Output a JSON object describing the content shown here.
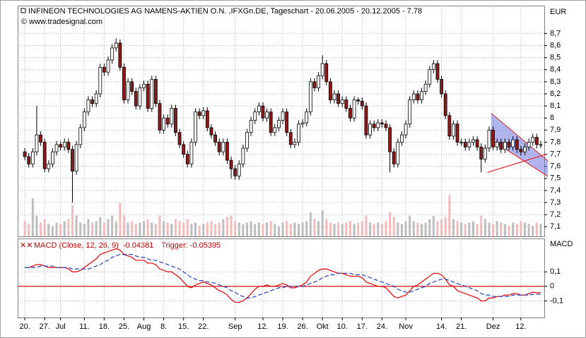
{
  "chart_data": [
    {
      "type": "candlestick",
      "title": "INFINEON TECHNOLOGIES AG NAMENS-AKTIEN O.N. ,IFXGn.DE, Tageschart - 20.06.2005 - 20.12.2005 - 7.78",
      "subtitle": "© www.tradesignal.com",
      "y_label": "EUR",
      "open": [
        7.72,
        7.68,
        7.62,
        7.72,
        7.86,
        7.8,
        7.58,
        7.62,
        7.72,
        7.78,
        7.76,
        7.8,
        7.74,
        7.56,
        7.78,
        7.92,
        8.05,
        8.15,
        8.12,
        8.2,
        8.42,
        8.38,
        8.48,
        8.58,
        8.62,
        8.42,
        8.15,
        8.3,
        8.22,
        8.1,
        8.25,
        8.28,
        8.08,
        8.32,
        8.12,
        7.9,
        8.0,
        7.95,
        8.08,
        7.88,
        7.78,
        7.7,
        7.62,
        7.8,
        8.05,
        8.02,
        8.06,
        7.92,
        7.86,
        7.8,
        7.72,
        7.8,
        7.65,
        7.58,
        7.52,
        7.62,
        7.75,
        7.88,
        7.98,
        8.05,
        8.1,
        8.0,
        8.05,
        7.88,
        7.92,
        7.98,
        8.05,
        7.88,
        7.78,
        7.8,
        7.95,
        7.96,
        8.05,
        8.3,
        8.25,
        8.35,
        8.45,
        8.3,
        8.15,
        8.2,
        8.12,
        8.15,
        8.08,
        8.0,
        8.15,
        8.14,
        8.1,
        7.86,
        7.95,
        7.92,
        7.96,
        7.95,
        7.92,
        7.72,
        7.62,
        7.8,
        7.86,
        7.95,
        8.15,
        8.2,
        8.15,
        8.22,
        8.28,
        8.4,
        8.45,
        8.32,
        8.2,
        8.02,
        7.85,
        7.95,
        7.8,
        7.8,
        7.76,
        7.8,
        7.82,
        7.76,
        7.66,
        7.75,
        7.9,
        7.76,
        7.8,
        7.74,
        7.8,
        7.76,
        7.82,
        7.74,
        7.72,
        7.76,
        7.8,
        7.84,
        7.78
      ],
      "high": [
        7.75,
        7.71,
        7.75,
        8.1,
        7.89,
        7.83,
        7.65,
        7.75,
        7.81,
        7.81,
        7.83,
        7.83,
        7.77,
        7.81,
        7.95,
        8.08,
        8.18,
        8.18,
        8.23,
        8.45,
        8.45,
        8.51,
        8.61,
        8.66,
        8.65,
        8.45,
        8.33,
        8.33,
        8.25,
        8.28,
        8.31,
        8.31,
        8.35,
        8.35,
        8.15,
        8.03,
        8.03,
        8.11,
        8.11,
        7.91,
        7.81,
        7.73,
        7.83,
        8.08,
        8.08,
        8.09,
        8.09,
        7.95,
        7.89,
        7.83,
        7.83,
        7.83,
        7.68,
        7.61,
        7.65,
        7.78,
        7.91,
        8.01,
        8.08,
        8.13,
        8.13,
        8.08,
        8.08,
        7.95,
        8.01,
        8.08,
        8.08,
        7.91,
        7.83,
        7.98,
        7.99,
        8.08,
        8.33,
        8.33,
        8.38,
        8.52,
        8.48,
        8.33,
        8.23,
        8.23,
        8.18,
        8.18,
        8.11,
        8.18,
        8.17,
        8.17,
        8.13,
        7.98,
        7.98,
        7.99,
        7.99,
        7.98,
        7.95,
        7.75,
        7.83,
        7.89,
        7.98,
        8.18,
        8.23,
        8.23,
        8.25,
        8.31,
        8.43,
        8.48,
        8.48,
        8.35,
        8.23,
        8.05,
        7.98,
        7.98,
        7.83,
        7.83,
        7.83,
        7.85,
        7.85,
        7.79,
        7.78,
        7.93,
        7.93,
        7.83,
        7.83,
        7.83,
        7.83,
        7.85,
        7.85,
        7.77,
        7.79,
        7.83,
        7.87,
        7.87,
        7.81
      ],
      "low": [
        7.65,
        7.59,
        7.59,
        7.69,
        7.77,
        7.55,
        7.55,
        7.59,
        7.69,
        7.73,
        7.73,
        7.71,
        7.3,
        7.53,
        7.75,
        7.89,
        8.02,
        8.09,
        8.09,
        8.17,
        8.35,
        8.35,
        8.45,
        8.55,
        8.39,
        8.12,
        8.12,
        8.19,
        8.07,
        8.07,
        8.22,
        8.05,
        8.05,
        8.09,
        7.87,
        7.87,
        7.92,
        7.92,
        7.85,
        7.75,
        7.67,
        7.59,
        7.59,
        7.77,
        7.99,
        7.99,
        7.89,
        7.83,
        7.77,
        7.69,
        7.69,
        7.62,
        7.5,
        7.49,
        7.49,
        7.59,
        7.72,
        7.85,
        7.95,
        8.02,
        7.97,
        7.97,
        7.85,
        7.85,
        7.89,
        7.95,
        7.85,
        7.75,
        7.75,
        7.77,
        7.92,
        7.93,
        8.02,
        8.22,
        8.22,
        8.32,
        8.27,
        8.12,
        8.12,
        8.09,
        8.09,
        8.05,
        7.97,
        7.97,
        8.11,
        8.07,
        7.83,
        7.83,
        7.89,
        7.89,
        7.92,
        7.89,
        7.55,
        7.59,
        7.59,
        7.77,
        7.83,
        7.92,
        8.12,
        8.12,
        8.12,
        8.19,
        8.25,
        8.37,
        8.29,
        8.17,
        7.99,
        7.82,
        7.82,
        7.77,
        7.77,
        7.73,
        7.73,
        7.77,
        7.73,
        7.55,
        7.63,
        7.72,
        7.73,
        7.73,
        7.71,
        7.71,
        7.73,
        7.73,
        7.71,
        7.69,
        7.69,
        7.73,
        7.77,
        7.75,
        7.75
      ],
      "close": [
        7.68,
        7.62,
        7.72,
        7.86,
        7.8,
        7.58,
        7.62,
        7.72,
        7.78,
        7.76,
        7.8,
        7.74,
        7.56,
        7.78,
        7.92,
        8.05,
        8.15,
        8.12,
        8.2,
        8.42,
        8.38,
        8.48,
        8.58,
        8.62,
        8.42,
        8.15,
        8.3,
        8.22,
        8.1,
        8.25,
        8.28,
        8.08,
        8.32,
        8.12,
        7.9,
        8.0,
        7.95,
        8.08,
        7.88,
        7.78,
        7.7,
        7.62,
        7.8,
        8.05,
        8.02,
        8.06,
        7.92,
        7.86,
        7.8,
        7.72,
        7.8,
        7.65,
        7.58,
        7.52,
        7.62,
        7.75,
        7.88,
        7.98,
        8.05,
        8.1,
        8.0,
        8.05,
        7.88,
        7.92,
        7.98,
        8.05,
        7.88,
        7.78,
        7.8,
        7.95,
        7.96,
        8.05,
        8.3,
        8.25,
        8.35,
        8.45,
        8.3,
        8.15,
        8.2,
        8.12,
        8.15,
        8.08,
        8.0,
        8.15,
        8.14,
        8.1,
        7.86,
        7.95,
        7.92,
        7.96,
        7.95,
        7.92,
        7.72,
        7.62,
        7.8,
        7.86,
        7.95,
        8.15,
        8.2,
        8.15,
        8.22,
        8.28,
        8.4,
        8.45,
        8.32,
        8.2,
        8.02,
        7.85,
        7.95,
        7.8,
        7.8,
        7.76,
        7.8,
        7.82,
        7.76,
        7.66,
        7.75,
        7.9,
        7.76,
        7.8,
        7.74,
        7.8,
        7.76,
        7.82,
        7.74,
        7.72,
        7.76,
        7.8,
        7.84,
        7.78,
        7.78
      ],
      "volume": [
        22,
        18,
        55,
        30,
        20,
        25,
        18,
        15,
        20,
        18,
        22,
        25,
        45,
        30,
        20,
        18,
        25,
        20,
        22,
        28,
        20,
        25,
        30,
        22,
        48,
        30,
        20,
        22,
        18,
        20,
        22,
        25,
        20,
        18,
        30,
        22,
        20,
        18,
        25,
        22,
        20,
        25,
        18,
        20,
        15,
        18,
        20,
        22,
        18,
        20,
        25,
        28,
        30,
        22,
        20,
        18,
        20,
        22,
        18,
        20,
        18,
        20,
        22,
        18,
        15,
        20,
        22,
        18,
        20,
        18,
        20,
        22,
        35,
        25,
        22,
        38,
        25,
        20,
        18,
        20,
        18,
        20,
        22,
        18,
        20,
        22,
        30,
        20,
        18,
        20,
        18,
        22,
        35,
        28,
        20,
        18,
        22,
        30,
        22,
        20,
        18,
        20,
        25,
        30,
        22,
        25,
        28,
        60,
        25,
        22,
        20,
        18,
        20,
        22,
        18,
        30,
        25,
        20,
        18,
        22,
        20,
        18,
        15,
        20,
        18,
        22,
        20,
        18,
        15,
        20,
        18
      ],
      "vlim": [
        0,
        100
      ],
      "up_color": "#ffffff",
      "down_color": "#8b1a1a",
      "volume_up_color": "#bdbdbd",
      "volume_down_color": "#f2bcbc",
      "ylim": [
        7.02,
        8.93
      ],
      "yticks": [
        {
          "value": 7.1,
          "label": "7,1"
        },
        {
          "value": 7.2,
          "label": "7,2"
        },
        {
          "value": 7.3,
          "label": "7,3"
        },
        {
          "value": 7.4,
          "label": "7,4"
        },
        {
          "value": 7.5,
          "label": "7,5"
        },
        {
          "value": 7.6,
          "label": "7,6"
        },
        {
          "value": 7.7,
          "label": "7,7"
        },
        {
          "value": 7.8,
          "label": "7,8"
        },
        {
          "value": 7.9,
          "label": "7,9"
        },
        8,
        {
          "value": 8.1,
          "label": "8,1"
        },
        {
          "value": 8.2,
          "label": "8,2"
        },
        {
          "value": 8.3,
          "label": "8,3"
        },
        {
          "value": 8.4,
          "label": "8,4"
        },
        {
          "value": 8.5,
          "label": "8,5"
        },
        {
          "value": 8.6,
          "label": "8,6"
        },
        {
          "value": 8.7,
          "label": "8,7"
        }
      ],
      "grid": true,
      "channel": {
        "x": [
          117.5,
          131.8
        ],
        "upper": [
          8.04,
          7.645
        ],
        "lower": [
          7.82,
          7.516
        ],
        "color": "#6f78e0",
        "edge_color": "#e02020"
      },
      "trendline": {
        "x": [
          116.6,
          131.4
        ],
        "y": [
          7.55,
          7.7
        ],
        "color": "#e02020"
      }
    },
    {
      "type": "line",
      "y_label": "MACD",
      "series": [
        {
          "name": "MACD (Close, 12, 26, 9)",
          "color": "#e00000",
          "last_label": "-0.04381",
          "values": [
            0.13,
            0.13,
            0.14,
            0.15,
            0.15,
            0.14,
            0.13,
            0.13,
            0.13,
            0.13,
            0.13,
            0.12,
            0.1,
            0.1,
            0.11,
            0.13,
            0.15,
            0.17,
            0.19,
            0.22,
            0.23,
            0.24,
            0.25,
            0.26,
            0.25,
            0.22,
            0.21,
            0.2,
            0.18,
            0.18,
            0.18,
            0.16,
            0.16,
            0.15,
            0.12,
            0.11,
            0.1,
            0.1,
            0.08,
            0.06,
            0.03,
            0.0,
            -0.01,
            0.01,
            0.02,
            0.03,
            0.02,
            0.01,
            -0.01,
            -0.03,
            -0.04,
            -0.06,
            -0.09,
            -0.11,
            -0.11,
            -0.1,
            -0.08,
            -0.05,
            -0.02,
            0.0,
            0.0,
            0.01,
            0.0,
            0.0,
            0.01,
            0.02,
            0.01,
            -0.01,
            -0.01,
            0.0,
            0.01,
            0.03,
            0.07,
            0.09,
            0.11,
            0.12,
            0.12,
            0.11,
            0.1,
            0.09,
            0.09,
            0.08,
            0.07,
            0.07,
            0.07,
            0.06,
            0.03,
            0.02,
            0.01,
            0.0,
            0.0,
            -0.01,
            -0.04,
            -0.07,
            -0.08,
            -0.07,
            -0.06,
            -0.03,
            0.0,
            0.01,
            0.03,
            0.05,
            0.07,
            0.09,
            0.09,
            0.08,
            0.05,
            0.01,
            0.0,
            -0.03,
            -0.04,
            -0.05,
            -0.06,
            -0.07,
            -0.08,
            -0.1,
            -0.1,
            -0.08,
            -0.08,
            -0.07,
            -0.07,
            -0.06,
            -0.06,
            -0.05,
            -0.05,
            -0.06,
            -0.06,
            -0.05,
            -0.04,
            -0.044,
            -0.04381
          ]
        },
        {
          "name": "Trigger:",
          "color": "#1f3fbf",
          "dash": true,
          "last_label": "-0.05395",
          "values": [
            0.13,
            0.13,
            0.13,
            0.13,
            0.14,
            0.14,
            0.14,
            0.14,
            0.13,
            0.13,
            0.13,
            0.13,
            0.12,
            0.12,
            0.12,
            0.12,
            0.12,
            0.13,
            0.14,
            0.15,
            0.17,
            0.18,
            0.2,
            0.21,
            0.22,
            0.22,
            0.22,
            0.22,
            0.21,
            0.2,
            0.2,
            0.19,
            0.18,
            0.18,
            0.17,
            0.16,
            0.15,
            0.14,
            0.13,
            0.12,
            0.1,
            0.08,
            0.06,
            0.05,
            0.04,
            0.04,
            0.03,
            0.03,
            0.02,
            0.01,
            0.0,
            -0.01,
            -0.03,
            -0.04,
            -0.06,
            -0.07,
            -0.08,
            -0.08,
            -0.07,
            -0.06,
            -0.05,
            -0.04,
            -0.03,
            -0.02,
            -0.01,
            -0.01,
            0.0,
            0.0,
            0.0,
            0.0,
            0.0,
            0.01,
            0.02,
            0.03,
            0.04,
            0.06,
            0.07,
            0.08,
            0.08,
            0.09,
            0.09,
            0.09,
            0.09,
            0.08,
            0.08,
            0.08,
            0.07,
            0.06,
            0.05,
            0.04,
            0.03,
            0.02,
            0.01,
            0.0,
            -0.02,
            -0.03,
            -0.04,
            -0.04,
            -0.03,
            -0.02,
            -0.01,
            0.0,
            0.02,
            0.03,
            0.04,
            0.05,
            0.05,
            0.04,
            0.03,
            0.02,
            0.01,
            0.0,
            -0.01,
            -0.02,
            -0.03,
            -0.05,
            -0.06,
            -0.06,
            -0.07,
            -0.07,
            -0.07,
            -0.07,
            -0.07,
            -0.06,
            -0.06,
            -0.06,
            -0.06,
            -0.06,
            -0.055,
            -0.054,
            -0.05395
          ]
        }
      ],
      "zero_line_color": "#d00000",
      "ylim": [
        -0.215,
        0.33
      ],
      "yticks": [
        {
          "value": 0.1,
          "label": "0,1"
        },
        0,
        {
          "value": -0.1,
          "label": "-0,1"
        }
      ],
      "grid": true,
      "xlim": [
        -1.8,
        130.9
      ],
      "xticks": [
        {
          "value": 0,
          "label": "20."
        },
        {
          "value": 5,
          "label": "27."
        },
        {
          "value": 9,
          "label": "Jul"
        },
        {
          "value": 15,
          "label": "11."
        },
        {
          "value": 20,
          "label": "18."
        },
        {
          "value": 25,
          "label": "25."
        },
        {
          "value": 30,
          "label": "Aug"
        },
        {
          "value": 35,
          "label": "8."
        },
        {
          "value": 40,
          "label": "15."
        },
        {
          "value": 45,
          "label": "22."
        },
        {
          "value": 53,
          "label": "Sep"
        },
        {
          "value": 60,
          "label": "12."
        },
        {
          "value": 65,
          "label": "19."
        },
        {
          "value": 70,
          "label": "26."
        },
        {
          "value": 75,
          "label": "Okt"
        },
        {
          "value": 80,
          "label": "10."
        },
        {
          "value": 85,
          "label": "17."
        },
        {
          "value": 90,
          "label": "24."
        },
        {
          "value": 96,
          "label": "Nov"
        },
        {
          "value": 105,
          "label": "14."
        },
        {
          "value": 110,
          "label": "21."
        },
        {
          "value": 118,
          "label": "Dez"
        },
        {
          "value": 125,
          "label": "12."
        }
      ]
    }
  ]
}
